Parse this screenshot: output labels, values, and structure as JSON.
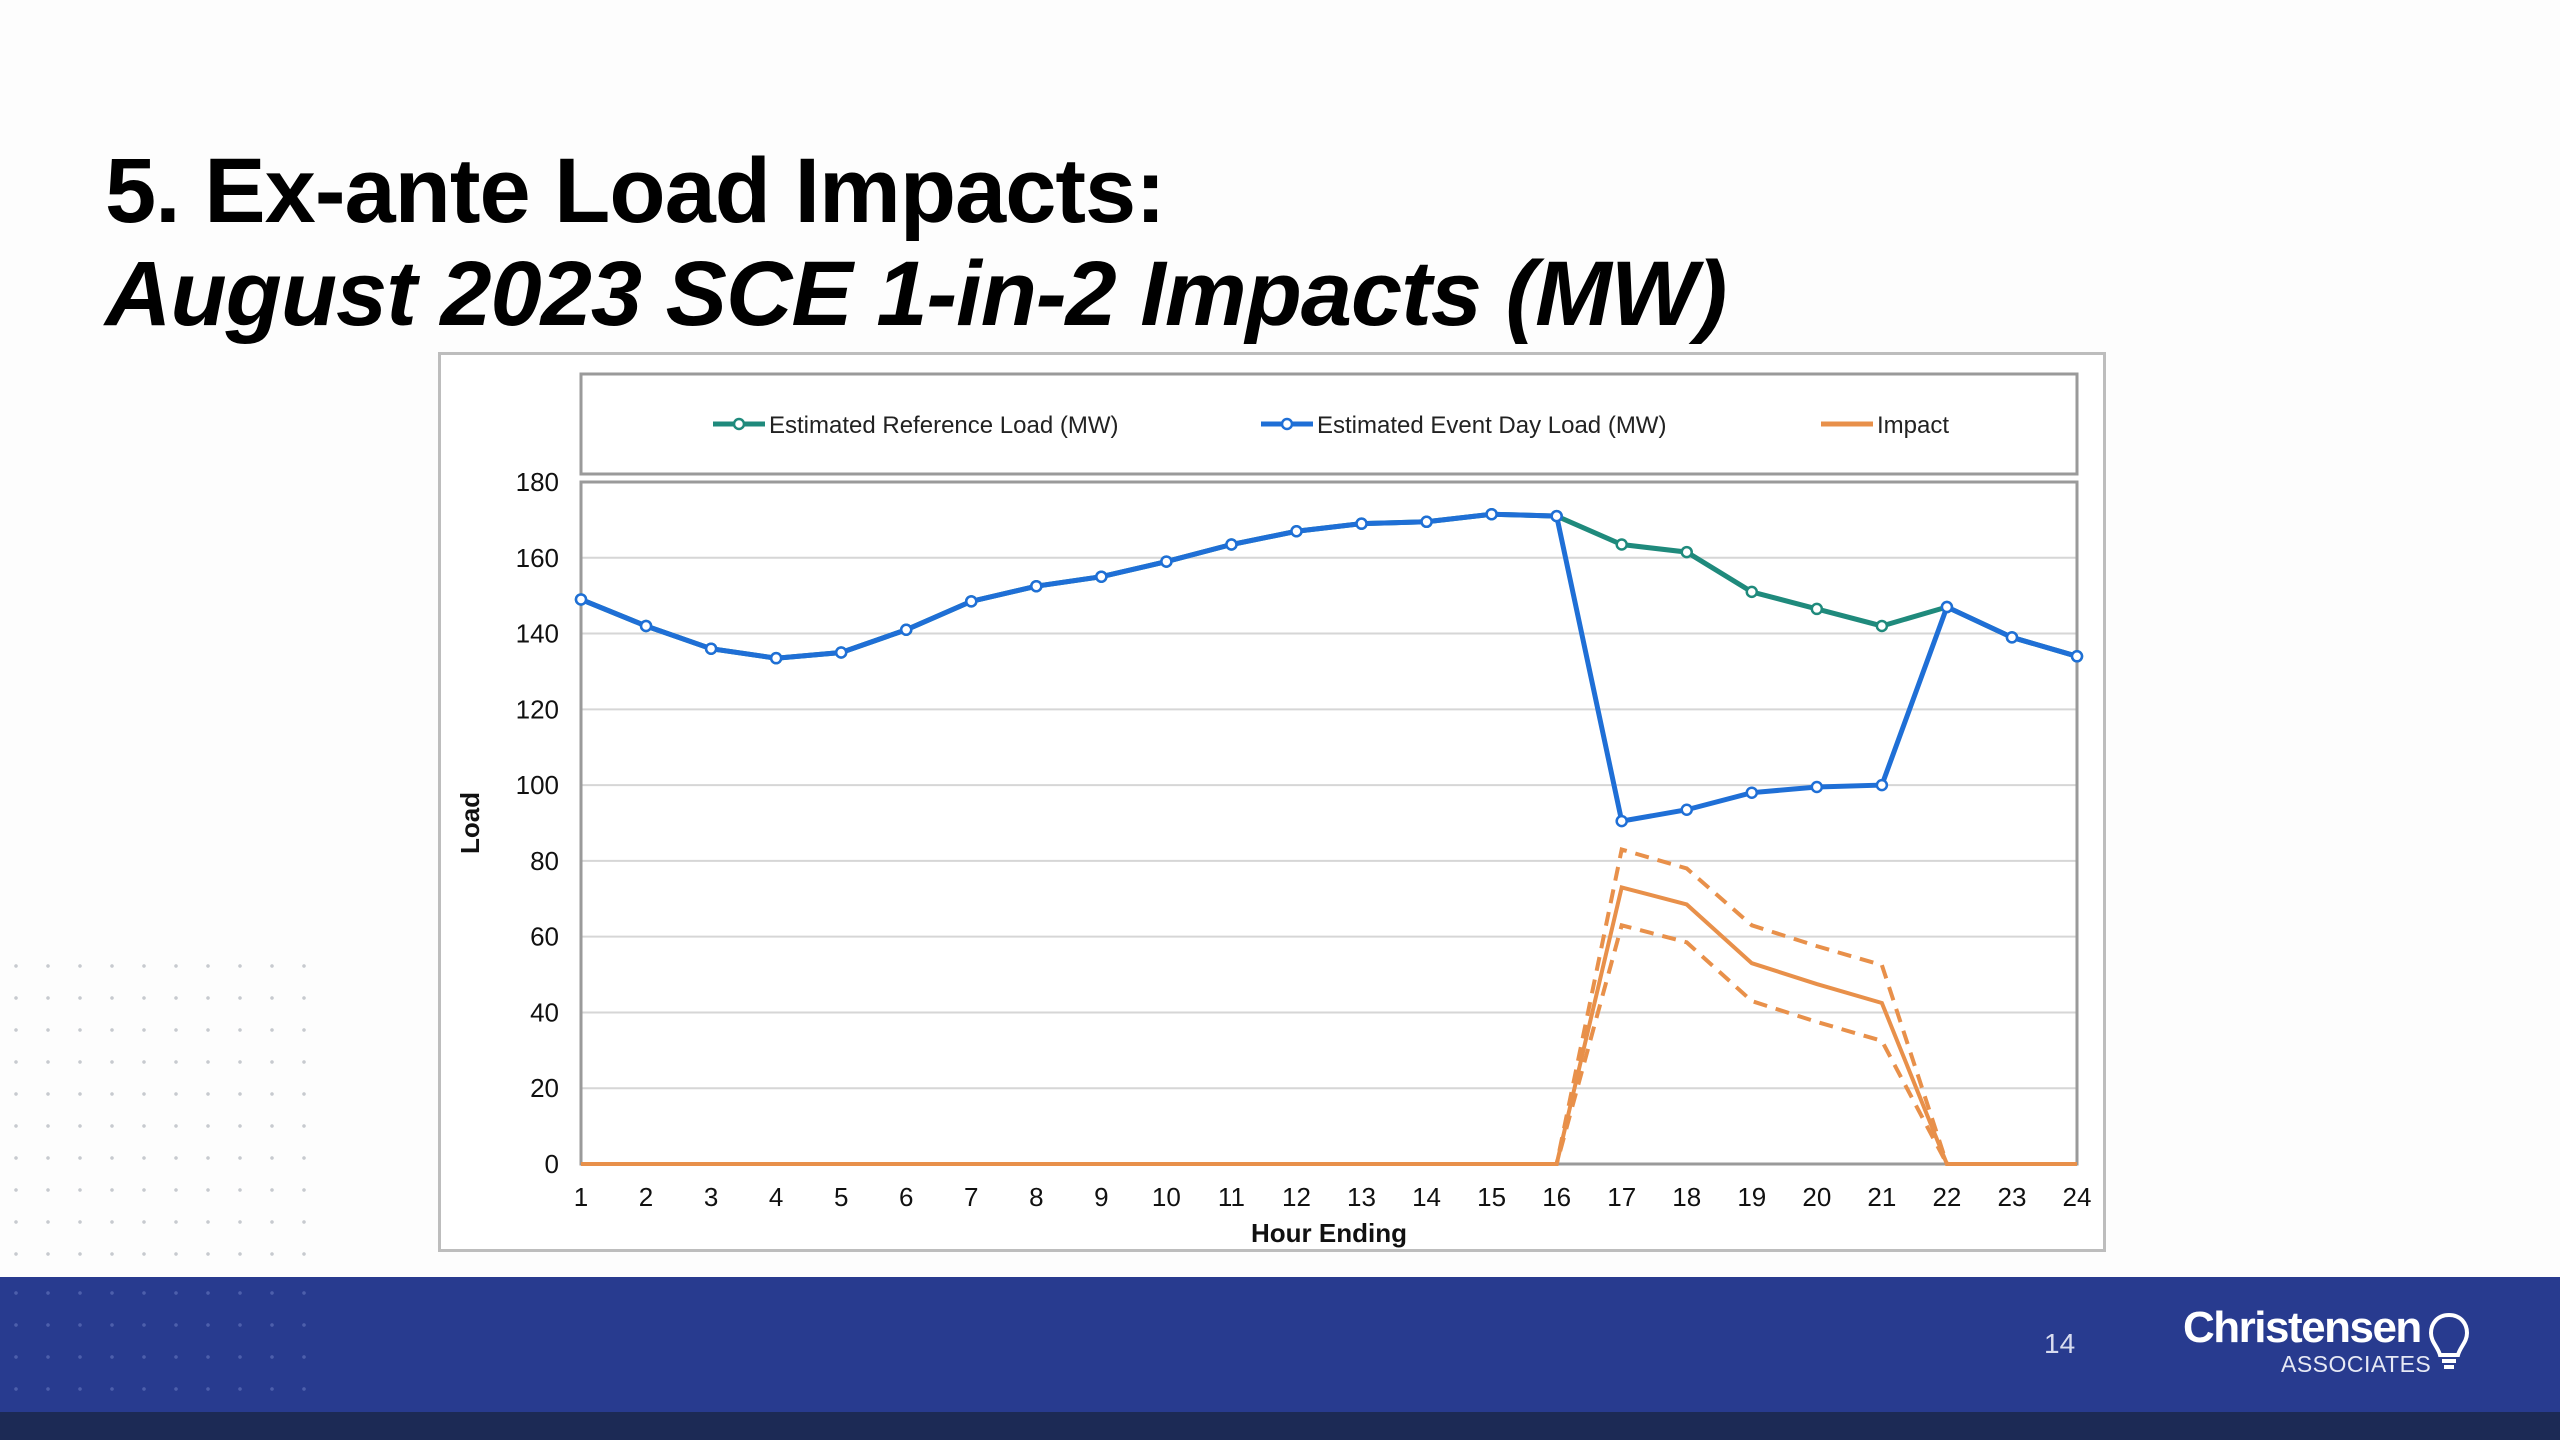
{
  "slide": {
    "title_line1": "5. Ex-ante Load Impacts:",
    "title_line2": "August 2023 SCE 1-in-2 Impacts (MW)",
    "page_number": "14"
  },
  "logo": {
    "name": "Christensen",
    "sub": "ASSOCIATES"
  },
  "colors": {
    "reference": "#1f8a7c",
    "event": "#1f6fd6",
    "impact": "#e8904a",
    "footer": "#283b8f"
  },
  "chart_data": {
    "type": "line",
    "xlabel": "Hour Ending",
    "ylabel": "Load",
    "ylim": [
      0,
      180
    ],
    "yticks": [
      0,
      20,
      40,
      60,
      80,
      100,
      120,
      140,
      160,
      180
    ],
    "grid": true,
    "legend_position": "top",
    "x": [
      1,
      2,
      3,
      4,
      5,
      6,
      7,
      8,
      9,
      10,
      11,
      12,
      13,
      14,
      15,
      16,
      17,
      18,
      19,
      20,
      21,
      22,
      23,
      24
    ],
    "series": [
      {
        "name": "Estimated Reference Load (MW)",
        "color": "#1f8a7c",
        "marker": "circle",
        "values": [
          149,
          142,
          136,
          133.5,
          135,
          141,
          148.5,
          152.5,
          155,
          159,
          163.5,
          167,
          169,
          169.5,
          171.5,
          171,
          163.5,
          161.5,
          151,
          146.5,
          142,
          147,
          139,
          134
        ]
      },
      {
        "name": "Estimated Event Day Load (MW)",
        "color": "#1f6fd6",
        "marker": "circle",
        "values": [
          149,
          142,
          136,
          133.5,
          135,
          141,
          148.5,
          152.5,
          155,
          159,
          163.5,
          167,
          169,
          169.5,
          171.5,
          171,
          90.5,
          93.5,
          98,
          99.5,
          100,
          147,
          139,
          134
        ]
      },
      {
        "name": "Impact",
        "color": "#e8904a",
        "marker": "none",
        "values": [
          0,
          0,
          0,
          0,
          0,
          0,
          0,
          0,
          0,
          0,
          0,
          0,
          0,
          0,
          0,
          0,
          73,
          68.5,
          53,
          47.5,
          42.5,
          0,
          0,
          0
        ],
        "upper": [
          0,
          0,
          0,
          0,
          0,
          0,
          0,
          0,
          0,
          0,
          0,
          0,
          0,
          0,
          0,
          0,
          83,
          78,
          63,
          57.5,
          52.5,
          0,
          0,
          0
        ],
        "lower": [
          0,
          0,
          0,
          0,
          0,
          0,
          0,
          0,
          0,
          0,
          0,
          0,
          0,
          0,
          0,
          0,
          63,
          58.5,
          43,
          37.5,
          32.5,
          0,
          0,
          0
        ]
      }
    ]
  }
}
